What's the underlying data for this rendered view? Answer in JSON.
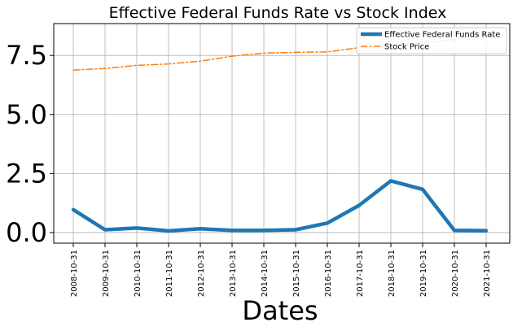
{
  "chart_data": {
    "type": "line",
    "title": "Effective Federal Funds Rate vs Stock Index",
    "xlabel": "Dates",
    "ylabel": "",
    "x": [
      "2008-10-31",
      "2009-10-31",
      "2010-10-31",
      "2011-10-31",
      "2012-10-31",
      "2013-10-31",
      "2014-10-31",
      "2015-10-31",
      "2016-10-31",
      "2017-10-31",
      "2018-10-31",
      "2019-10-31",
      "2020-10-31",
      "2021-10-31"
    ],
    "ylim": [
      -0.45,
      8.85
    ],
    "yticks": [
      "0.0",
      "2.5",
      "5.0",
      "7.5"
    ],
    "grid": true,
    "legend_position": "upper-right",
    "series": [
      {
        "name": "Effective Federal Funds Rate",
        "color": "#1f77b4",
        "style": "solid",
        "values": [
          0.97,
          0.12,
          0.19,
          0.07,
          0.16,
          0.09,
          0.09,
          0.12,
          0.4,
          1.15,
          2.19,
          1.83,
          0.09,
          0.08
        ]
      },
      {
        "name": "Stock Price",
        "color": "#ff7f0e",
        "style": "dashdot",
        "values": [
          6.88,
          6.95,
          7.08,
          7.14,
          7.26,
          7.47,
          7.6,
          7.63,
          7.65,
          7.83,
          7.95,
          8.03,
          8.17,
          8.45
        ]
      }
    ]
  }
}
